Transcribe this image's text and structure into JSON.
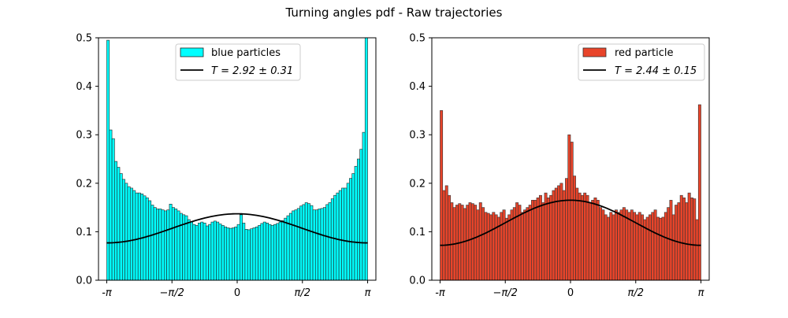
{
  "figure": {
    "title": "Turning angles pdf - Raw trajectories"
  },
  "chart_data": [
    {
      "type": "bar",
      "xlim": [
        -3.34,
        3.34
      ],
      "ylim": [
        0,
        0.5
      ],
      "bins": 100,
      "bar_color": "#00ffff",
      "edge_color": "#222222",
      "curve_color": "#000000",
      "legend_position": "upper center",
      "legend": [
        {
          "kind": "patch",
          "label": "blue particles"
        },
        {
          "kind": "line",
          "label": "T = 2.92 ± 0.31"
        }
      ],
      "xticks": [
        {
          "value": -3.14159,
          "label": "-π"
        },
        {
          "value": -1.5708,
          "label": "−π/2"
        },
        {
          "value": 0,
          "label": "0"
        },
        {
          "value": 1.5708,
          "label": "π/2"
        },
        {
          "value": 3.14159,
          "label": "π"
        }
      ],
      "yticks": [
        0.0,
        0.1,
        0.2,
        0.3,
        0.4,
        0.5
      ],
      "values": [
        0.495,
        0.31,
        0.292,
        0.245,
        0.233,
        0.22,
        0.208,
        0.2,
        0.193,
        0.19,
        0.185,
        0.18,
        0.18,
        0.178,
        0.174,
        0.17,
        0.164,
        0.155,
        0.15,
        0.147,
        0.147,
        0.145,
        0.143,
        0.145,
        0.157,
        0.15,
        0.147,
        0.143,
        0.138,
        0.135,
        0.133,
        0.125,
        0.12,
        0.115,
        0.113,
        0.118,
        0.12,
        0.118,
        0.112,
        0.115,
        0.12,
        0.122,
        0.12,
        0.116,
        0.113,
        0.11,
        0.108,
        0.107,
        0.108,
        0.11,
        0.115,
        0.135,
        0.118,
        0.105,
        0.104,
        0.106,
        0.108,
        0.11,
        0.113,
        0.117,
        0.12,
        0.118,
        0.115,
        0.113,
        0.115,
        0.117,
        0.12,
        0.123,
        0.128,
        0.133,
        0.138,
        0.143,
        0.145,
        0.148,
        0.153,
        0.156,
        0.16,
        0.158,
        0.154,
        0.145,
        0.145,
        0.147,
        0.148,
        0.15,
        0.156,
        0.16,
        0.168,
        0.175,
        0.18,
        0.185,
        0.19,
        0.19,
        0.2,
        0.21,
        0.22,
        0.235,
        0.25,
        0.27,
        0.305,
        0.5
      ],
      "fit_curve": {
        "ends": 0.077,
        "peak": 0.137
      }
    },
    {
      "type": "bar",
      "xlim": [
        -3.34,
        3.34
      ],
      "ylim": [
        0,
        0.5
      ],
      "bins": 100,
      "bar_color": "#e8442a",
      "edge_color": "#333333",
      "curve_color": "#000000",
      "legend_position": "upper right",
      "legend": [
        {
          "kind": "patch",
          "label": "red particle"
        },
        {
          "kind": "line",
          "label": "T = 2.44 ± 0.15"
        }
      ],
      "xticks": [
        {
          "value": -3.14159,
          "label": "-π"
        },
        {
          "value": -1.5708,
          "label": "−π/2"
        },
        {
          "value": 0,
          "label": "0"
        },
        {
          "value": 1.5708,
          "label": "π/2"
        },
        {
          "value": 3.14159,
          "label": "π"
        }
      ],
      "yticks": [
        0.0,
        0.1,
        0.2,
        0.3,
        0.4,
        0.5
      ],
      "values": [
        0.35,
        0.185,
        0.195,
        0.175,
        0.16,
        0.15,
        0.155,
        0.158,
        0.155,
        0.148,
        0.155,
        0.16,
        0.158,
        0.155,
        0.145,
        0.16,
        0.15,
        0.14,
        0.138,
        0.135,
        0.14,
        0.135,
        0.13,
        0.14,
        0.145,
        0.128,
        0.135,
        0.145,
        0.15,
        0.16,
        0.155,
        0.14,
        0.145,
        0.15,
        0.155,
        0.165,
        0.165,
        0.17,
        0.175,
        0.16,
        0.18,
        0.17,
        0.175,
        0.185,
        0.19,
        0.195,
        0.2,
        0.185,
        0.21,
        0.3,
        0.285,
        0.215,
        0.19,
        0.18,
        0.175,
        0.18,
        0.175,
        0.16,
        0.165,
        0.17,
        0.165,
        0.15,
        0.145,
        0.135,
        0.13,
        0.14,
        0.135,
        0.145,
        0.14,
        0.145,
        0.15,
        0.145,
        0.14,
        0.145,
        0.14,
        0.135,
        0.14,
        0.135,
        0.125,
        0.13,
        0.135,
        0.14,
        0.145,
        0.13,
        0.128,
        0.13,
        0.14,
        0.15,
        0.165,
        0.135,
        0.155,
        0.16,
        0.175,
        0.17,
        0.16,
        0.18,
        0.17,
        0.168,
        0.125,
        0.362
      ],
      "fit_curve": {
        "ends": 0.072,
        "peak": 0.165
      }
    }
  ]
}
